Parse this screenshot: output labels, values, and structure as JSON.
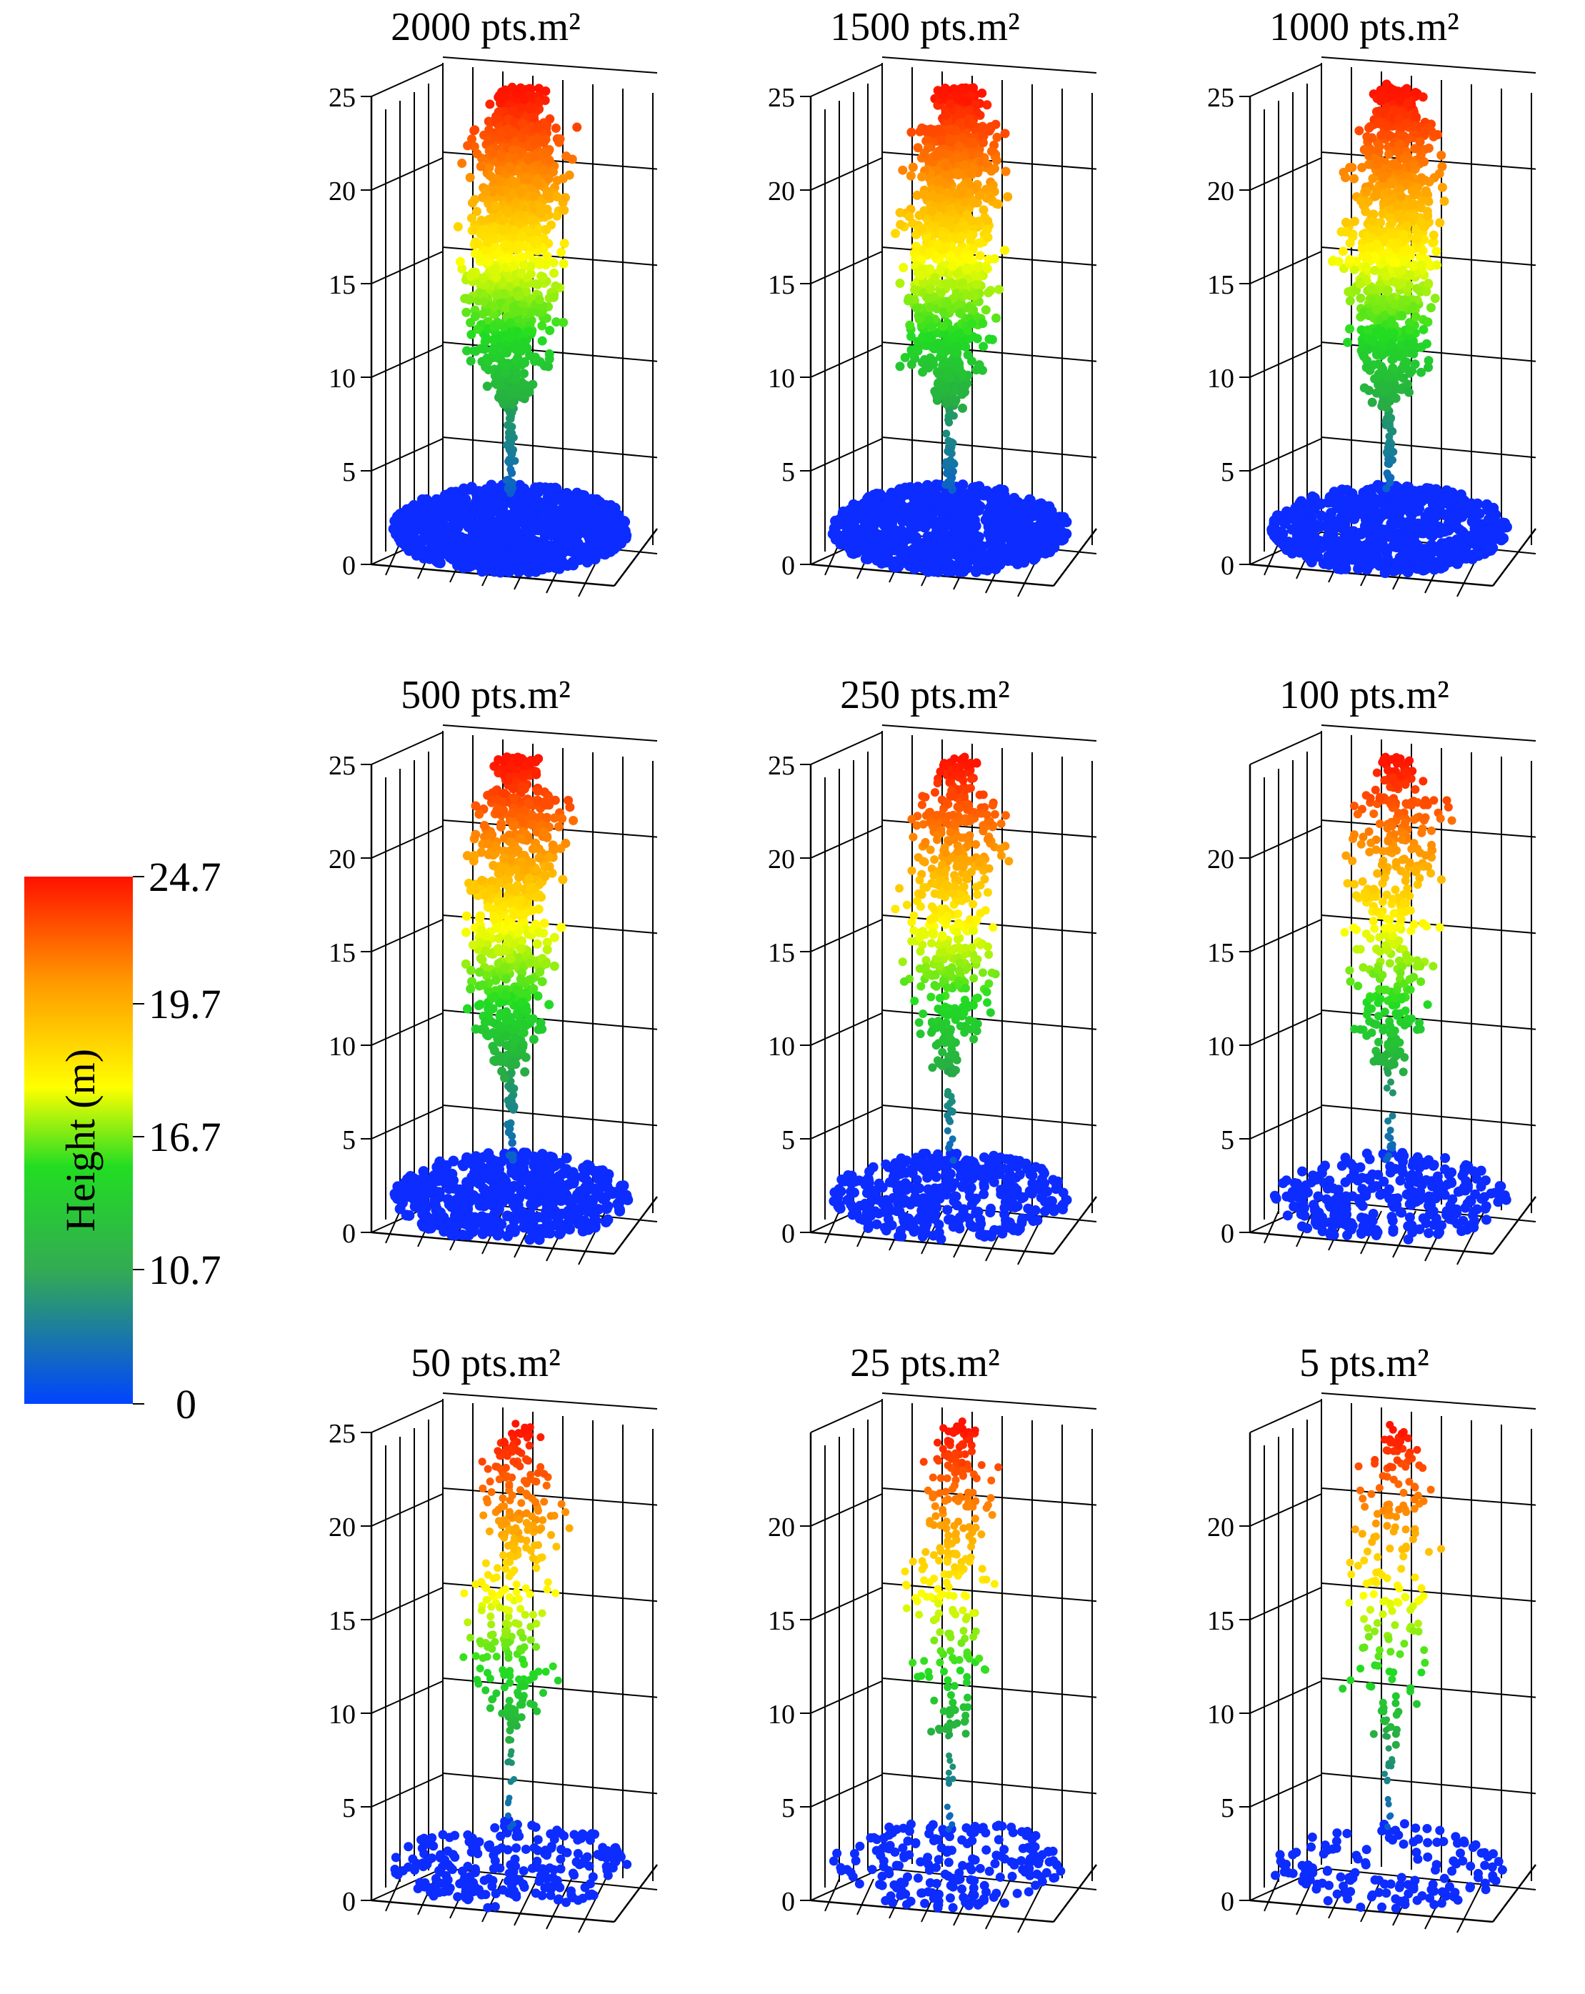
{
  "chart_data": {
    "type": "scatter",
    "title": "",
    "color_legend": {
      "label": "Height (m)",
      "ticks": [
        "24.7",
        "19.7",
        "16.7",
        "10.7",
        "0"
      ],
      "colors": [
        "#0044ff",
        "#22cc33",
        "#ffff00",
        "#ff9900",
        "#ff1100"
      ]
    },
    "z_ticks": [
      "0",
      "5",
      "10",
      "15",
      "20",
      "25"
    ],
    "z_range": [
      0,
      25
    ],
    "panels": [
      {
        "title": "2000 pts.m²",
        "density": 2000,
        "z_tick_labels": [
          "0",
          "5",
          "10",
          "15",
          "20",
          "25"
        ]
      },
      {
        "title": "1500 pts.m²",
        "density": 1500,
        "z_tick_labels": [
          "0",
          "5",
          "10",
          "15",
          "20",
          "25"
        ]
      },
      {
        "title": "1000 pts.m²",
        "density": 1000,
        "z_tick_labels": [
          "0",
          "5",
          "10",
          "15",
          "20",
          "25"
        ]
      },
      {
        "title": "500 pts.m²",
        "density": 500,
        "z_tick_labels": [
          "0",
          "5",
          "10",
          "15",
          "20",
          "25"
        ]
      },
      {
        "title": "250 pts.m²",
        "density": 250,
        "z_tick_labels": [
          "0",
          "5",
          "10",
          "15",
          "20",
          "25"
        ]
      },
      {
        "title": "100 pts.m²",
        "density": 100,
        "z_tick_labels": [
          "0",
          "5",
          "10",
          "15",
          "20"
        ]
      },
      {
        "title": "50 pts.m²",
        "density": 50,
        "z_tick_labels": [
          "0",
          "5",
          "10",
          "15",
          "20",
          "25"
        ]
      },
      {
        "title": "25 pts.m²",
        "density": 25,
        "z_tick_labels": [
          "0",
          "5",
          "10",
          "15",
          "20"
        ]
      },
      {
        "title": "5 pts.m²",
        "density": 5,
        "z_tick_labels": [
          "0",
          "5",
          "10",
          "15",
          "20"
        ]
      }
    ]
  }
}
